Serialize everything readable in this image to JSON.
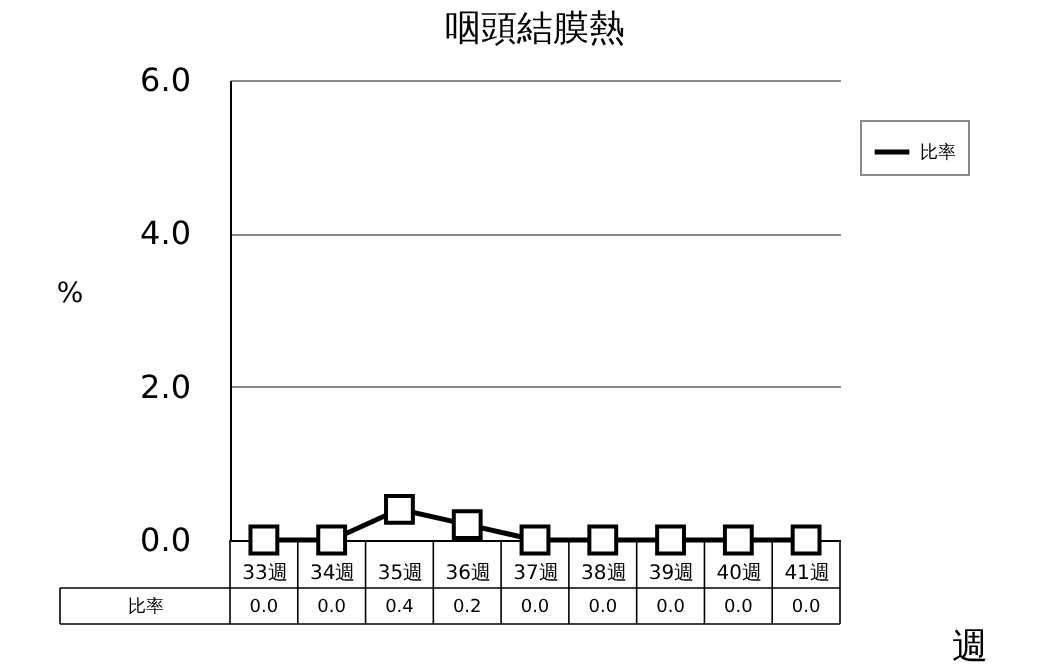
{
  "chart_data": {
    "type": "line",
    "title": "咽頭結膜熱",
    "xlabel": "週",
    "ylabel": "%",
    "categories": [
      "33週",
      "34週",
      "35週",
      "36週",
      "37週",
      "38週",
      "39週",
      "40週",
      "41週"
    ],
    "series": [
      {
        "name": "比率",
        "color": "#000000",
        "values": [
          0.0,
          0.0,
          0.4,
          0.2,
          0.0,
          0.0,
          0.0,
          0.0,
          0.0
        ],
        "value_labels": [
          "0.0",
          "0.0",
          "0.4",
          "0.2",
          "0.0",
          "0.0",
          "0.0",
          "0.0",
          "0.0"
        ]
      }
    ],
    "ylim": [
      0,
      6
    ],
    "yticks": [
      {
        "value": 0,
        "label": "0.0"
      },
      {
        "value": 2,
        "label": "2.0"
      },
      {
        "value": 4,
        "label": "4.0"
      },
      {
        "value": 6,
        "label": "6.0"
      }
    ],
    "grid": "y",
    "legend": "top right",
    "marker": "square",
    "line_style": "solid"
  }
}
